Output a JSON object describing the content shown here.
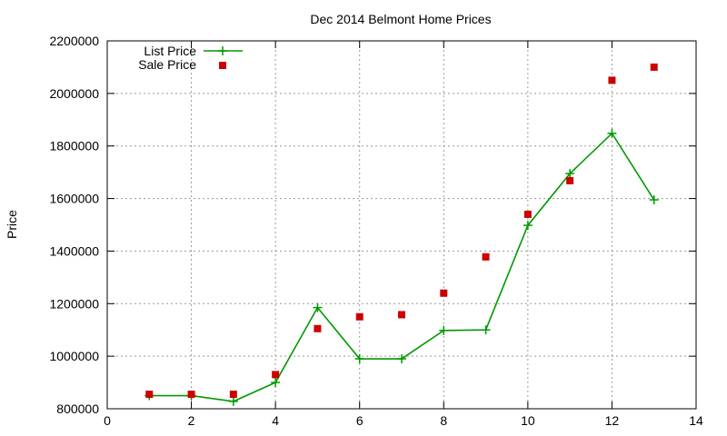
{
  "chart_data": {
    "type": "line",
    "title": "Dec 2014 Belmont Home Prices",
    "xlabel": "",
    "ylabel": "Price",
    "xlim": [
      0,
      14
    ],
    "ylim": [
      800000,
      2200000
    ],
    "xticks": [
      "0",
      "2",
      "4",
      "6",
      "8",
      "10",
      "12",
      "14"
    ],
    "yticks": [
      "800000",
      "1000000",
      "1200000",
      "1400000",
      "1600000",
      "1800000",
      "2000000",
      "2200000"
    ],
    "grid": true,
    "legend_position": "top-left",
    "series": [
      {
        "name": "List Price",
        "style": "line+plus",
        "color": "#009900",
        "x": [
          1,
          2,
          3,
          4,
          5,
          6,
          7,
          8,
          9,
          10,
          11,
          12,
          13
        ],
        "y": [
          850000,
          850000,
          828000,
          900000,
          1185000,
          990000,
          990000,
          1098000,
          1100000,
          1498000,
          1695000,
          1848000,
          1595000
        ]
      },
      {
        "name": "Sale Price",
        "style": "square-markers",
        "color": "#cc0000",
        "x": [
          1,
          2,
          3,
          4,
          5,
          6,
          7,
          8,
          9,
          10,
          11,
          12,
          13
        ],
        "y": [
          855000,
          855000,
          855000,
          930000,
          1105000,
          1150000,
          1158000,
          1240000,
          1378000,
          1540000,
          1668000,
          2050000,
          2100000
        ]
      }
    ]
  }
}
